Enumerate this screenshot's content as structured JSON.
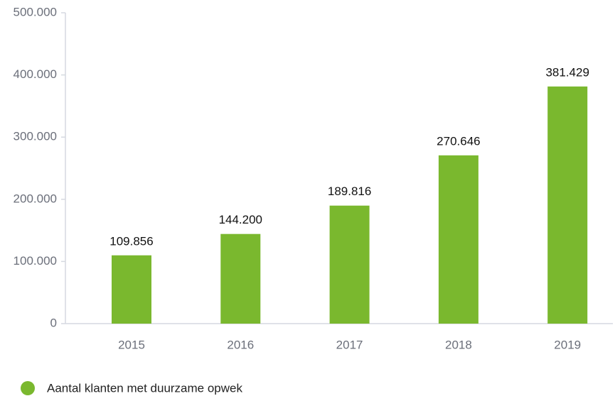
{
  "chart_data": {
    "type": "bar",
    "categories": [
      "2015",
      "2016",
      "2017",
      "2018",
      "2019"
    ],
    "series": [
      {
        "name": "Aantal klanten met duurzame opwek",
        "color": "#7ab82e",
        "values": [
          109856,
          144200,
          189816,
          270646,
          381429
        ],
        "value_labels": [
          "109.856",
          "144.200",
          "189.816",
          "270.646",
          "381.429"
        ]
      }
    ],
    "ylim": [
      0,
      500000
    ],
    "yticks": [
      0,
      {
        "value": 100000,
        "label": "100.000"
      },
      {
        "value": 200000,
        "label": "200.000"
      },
      {
        "value": 300000,
        "label": "300.000"
      },
      {
        "value": 400000,
        "label": "400.000"
      },
      {
        "value": 500000,
        "label": "500.000"
      }
    ],
    "grid": false,
    "legend": "bottom-left"
  }
}
